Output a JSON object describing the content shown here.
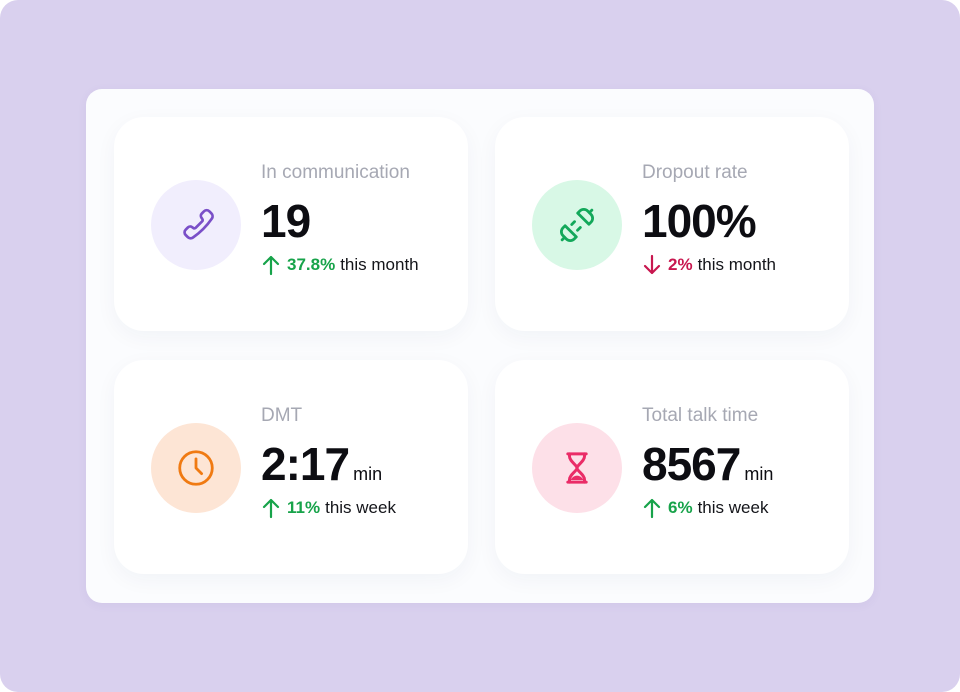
{
  "colors": {
    "background": "#d9d0ee",
    "up": "#17a34a",
    "down": "#c8174f"
  },
  "cards": [
    {
      "label": "In communication",
      "value": "19",
      "unit": "",
      "change": "37.8%",
      "direction": "up",
      "period": "this month",
      "icon": "phone-icon",
      "icon_color": "#7a4fc8",
      "icon_bg": "#f1eefd"
    },
    {
      "label": "Dropout rate",
      "value": "100%",
      "unit": "",
      "change": "2%",
      "direction": "down",
      "period": "this month",
      "icon": "plug-disconnect-icon",
      "icon_color": "#13a85a",
      "icon_bg": "#d8f8e6"
    },
    {
      "label": "DMT",
      "value": "2:17",
      "unit": "min",
      "change": "11%",
      "direction": "up",
      "period": "this week",
      "icon": "clock-icon",
      "icon_color": "#f07a12",
      "icon_bg": "#fde5d5"
    },
    {
      "label": "Total talk time",
      "value": "8567",
      "unit": "min",
      "change": "6%",
      "direction": "up",
      "period": "this week",
      "icon": "hourglass-icon",
      "icon_color": "#ea2c67",
      "icon_bg": "#fde0e8"
    }
  ]
}
